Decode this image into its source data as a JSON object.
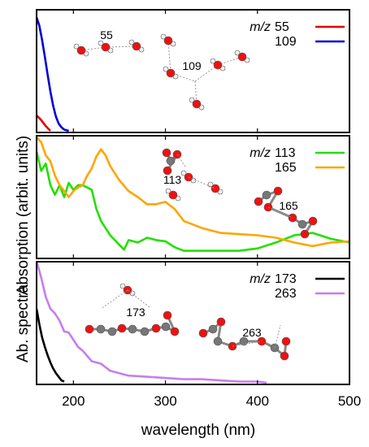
{
  "chart_data": {
    "type": "line",
    "ylabel_top": "Absorption (arbit. units)",
    "ylabel_bottom": "Ab. spectra",
    "xlabel": "wavelength (nm)",
    "xlim": [
      160,
      500
    ],
    "xticks": [
      200,
      300,
      400,
      500
    ],
    "mz_prefix": "m/z",
    "panels": [
      {
        "series": [
          {
            "name": "55",
            "color": "#e00000",
            "x": [
              160,
              165,
              170,
              175
            ],
            "y": [
              0.13,
              0.09,
              0.04,
              0.0
            ]
          },
          {
            "name": "109",
            "color": "#0000dd",
            "x": [
              160,
              163,
              166,
              169,
              172,
              175,
              178,
              181,
              184,
              187,
              190,
              195
            ],
            "y": [
              0.95,
              0.88,
              0.76,
              0.62,
              0.47,
              0.33,
              0.21,
              0.12,
              0.06,
              0.03,
              0.01,
              0.0
            ]
          }
        ],
        "molecule_labels": [
          "55",
          "109"
        ]
      },
      {
        "series": [
          {
            "name": "113",
            "color": "#22e000",
            "x": [
              160,
              165,
              170,
              175,
              180,
              185,
              190,
              195,
              200,
              205,
              210,
              215,
              220,
              225,
              230,
              240,
              250,
              255,
              260,
              270,
              280,
              290,
              300,
              310,
              320,
              340,
              360,
              380,
              400,
              420,
              440,
              460,
              480,
              500
            ],
            "y": [
              0.88,
              0.72,
              0.78,
              0.6,
              0.52,
              0.6,
              0.5,
              0.62,
              0.56,
              0.6,
              0.6,
              0.58,
              0.56,
              0.4,
              0.3,
              0.18,
              0.1,
              0.06,
              0.14,
              0.12,
              0.16,
              0.14,
              0.13,
              0.08,
              0.05,
              0.05,
              0.05,
              0.05,
              0.07,
              0.12,
              0.18,
              0.2,
              0.15,
              0.12
            ]
          },
          {
            "name": "165",
            "color": "#ffa500",
            "x": [
              160,
              165,
              170,
              175,
              180,
              185,
              190,
              195,
              200,
              205,
              210,
              215,
              220,
              225,
              230,
              235,
              240,
              250,
              260,
              270,
              280,
              290,
              300,
              310,
              320,
              340,
              360,
              380,
              400,
              420,
              440,
              460,
              480,
              500
            ],
            "y": [
              1.0,
              0.96,
              0.85,
              0.8,
              0.68,
              0.6,
              0.55,
              0.5,
              0.55,
              0.58,
              0.6,
              0.68,
              0.74,
              0.84,
              0.9,
              0.85,
              0.76,
              0.64,
              0.55,
              0.5,
              0.44,
              0.44,
              0.46,
              0.4,
              0.3,
              0.24,
              0.2,
              0.19,
              0.18,
              0.16,
              0.12,
              0.09,
              0.12,
              0.13
            ]
          }
        ],
        "molecule_labels": [
          "113",
          "165"
        ]
      },
      {
        "series": [
          {
            "name": "173",
            "color": "#000000",
            "x": [
              160,
              163,
              166,
              169,
              172,
              175,
              178,
              181,
              184,
              187,
              190
            ],
            "y": [
              0.62,
              0.49,
              0.38,
              0.3,
              0.23,
              0.17,
              0.12,
              0.08,
              0.05,
              0.02,
              0.01
            ]
          },
          {
            "name": "263",
            "color": "#c77dee",
            "x": [
              160,
              165,
              170,
              175,
              180,
              185,
              190,
              195,
              200,
              205,
              210,
              220,
              230,
              240,
              250,
              260,
              280,
              300,
              320,
              340,
              360,
              380,
              400,
              410
            ],
            "y": [
              1.02,
              0.88,
              0.72,
              0.62,
              0.58,
              0.52,
              0.43,
              0.42,
              0.36,
              0.3,
              0.27,
              0.18,
              0.16,
              0.1,
              0.08,
              0.06,
              0.05,
              0.04,
              0.03,
              0.03,
              0.02,
              0.01,
              0.01,
              0.0
            ]
          }
        ],
        "molecule_labels": [
          "173",
          "263"
        ]
      }
    ]
  }
}
